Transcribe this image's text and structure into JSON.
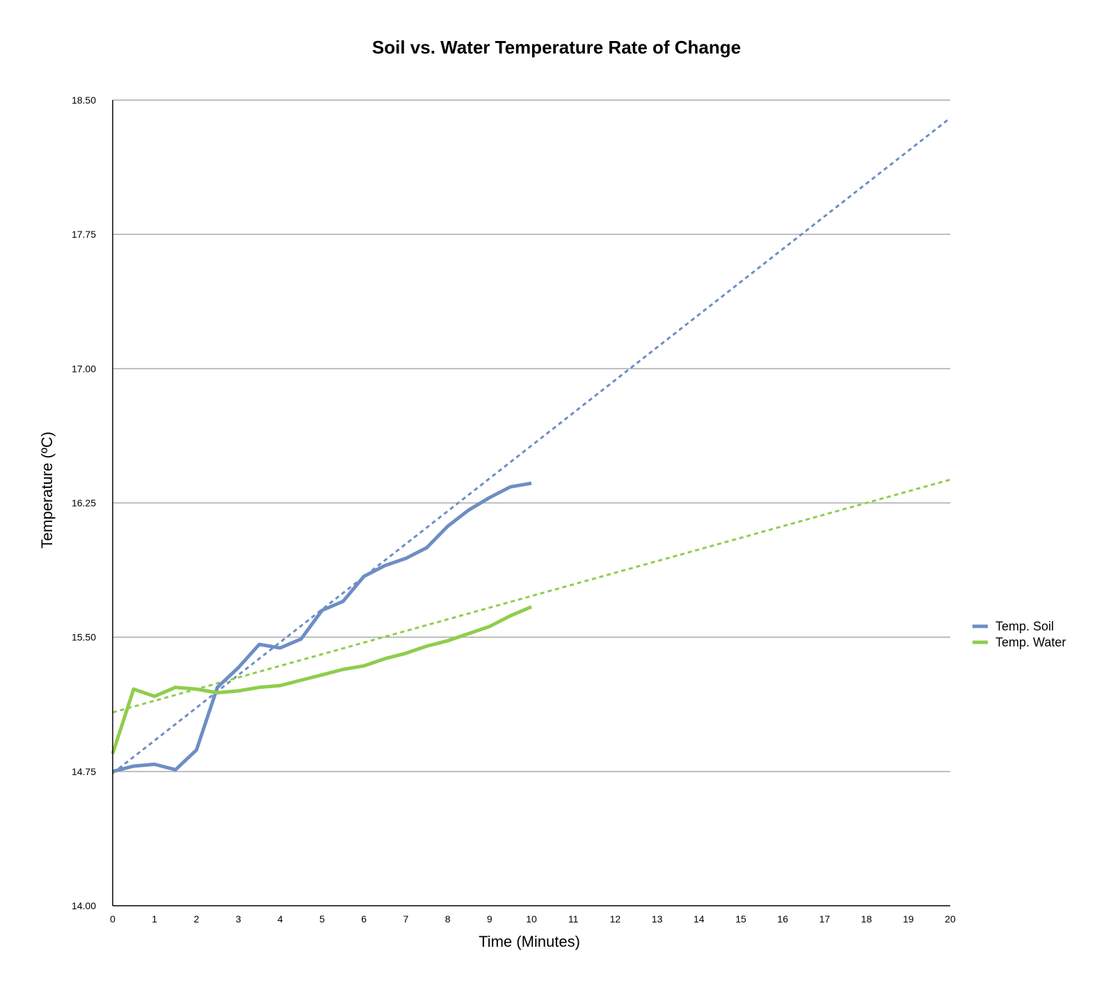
{
  "chart_data": {
    "type": "line",
    "title": "Soil vs. Water Temperature Rate of Change",
    "xlabel": "Time (Minutes)",
    "ylabel": "Temperature (ºC)",
    "xlim": [
      0,
      20
    ],
    "ylim": [
      14.0,
      18.5
    ],
    "x_ticks": [
      "0",
      "1",
      "2",
      "3",
      "4",
      "5",
      "6",
      "7",
      "8",
      "9",
      "10",
      "11",
      "12",
      "13",
      "14",
      "15",
      "16",
      "17",
      "18",
      "19",
      "20"
    ],
    "y_ticks": [
      "14.00",
      "14.75",
      "15.50",
      "16.25",
      "17.00",
      "17.75",
      "18.50"
    ],
    "grid": true,
    "legend_position": "right",
    "x": [
      0,
      0.5,
      1,
      1.5,
      2,
      2.5,
      3,
      3.5,
      4,
      4.5,
      5,
      5.5,
      6,
      6.5,
      7,
      7.5,
      8,
      8.5,
      9,
      9.5,
      10
    ],
    "series": [
      {
        "name": "Temp. Soil",
        "color": "#6d8ec4",
        "values": [
          14.75,
          14.78,
          14.79,
          14.76,
          14.87,
          15.22,
          15.33,
          15.46,
          15.44,
          15.49,
          15.65,
          15.7,
          15.84,
          15.9,
          15.94,
          16.0,
          16.12,
          16.21,
          16.28,
          16.34,
          16.36
        ],
        "trendline": {
          "x": [
            0,
            20
          ],
          "y": [
            14.74,
            18.4
          ]
        }
      },
      {
        "name": "Temp. Water",
        "color": "#8fcd4c",
        "values": [
          14.85,
          15.21,
          15.17,
          15.22,
          15.21,
          15.19,
          15.2,
          15.22,
          15.23,
          15.26,
          15.29,
          15.32,
          15.34,
          15.38,
          15.41,
          15.45,
          15.48,
          15.52,
          15.56,
          15.62,
          15.67
        ],
        "trendline": {
          "x": [
            0,
            20
          ],
          "y": [
            15.08,
            16.38
          ]
        }
      }
    ]
  }
}
